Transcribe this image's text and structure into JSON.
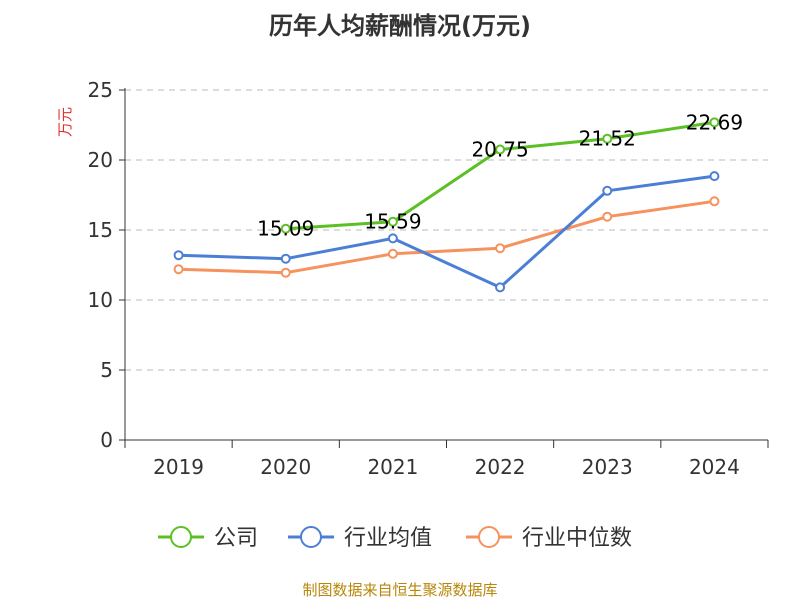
{
  "chart_data": {
    "type": "line",
    "title": "历年人均薪酬情况(万元)",
    "ylabel": "万元",
    "categories": [
      "2019",
      "2020",
      "2021",
      "2022",
      "2023",
      "2024"
    ],
    "ylim": [
      0,
      25
    ],
    "yticks": [
      0,
      5,
      10,
      15,
      20,
      25
    ],
    "grid": true,
    "legend_position": "bottom",
    "series": [
      {
        "name": "公司",
        "color": "#5cbf25",
        "values": [
          null,
          15.09,
          15.59,
          20.75,
          21.52,
          22.69
        ],
        "labels": [
          "",
          "15.09",
          "15.59",
          "20.75",
          "21.52",
          "22.69"
        ]
      },
      {
        "name": "行业均值",
        "color": "#4b7fd6",
        "values": [
          13.2,
          12.95,
          14.4,
          10.9,
          17.8,
          18.85
        ]
      },
      {
        "name": "行业中位数",
        "color": "#f5925e",
        "values": [
          12.2,
          11.95,
          13.3,
          13.7,
          15.95,
          17.05
        ]
      }
    ]
  },
  "footer": {
    "source": "制图数据来自恒生聚源数据库"
  }
}
